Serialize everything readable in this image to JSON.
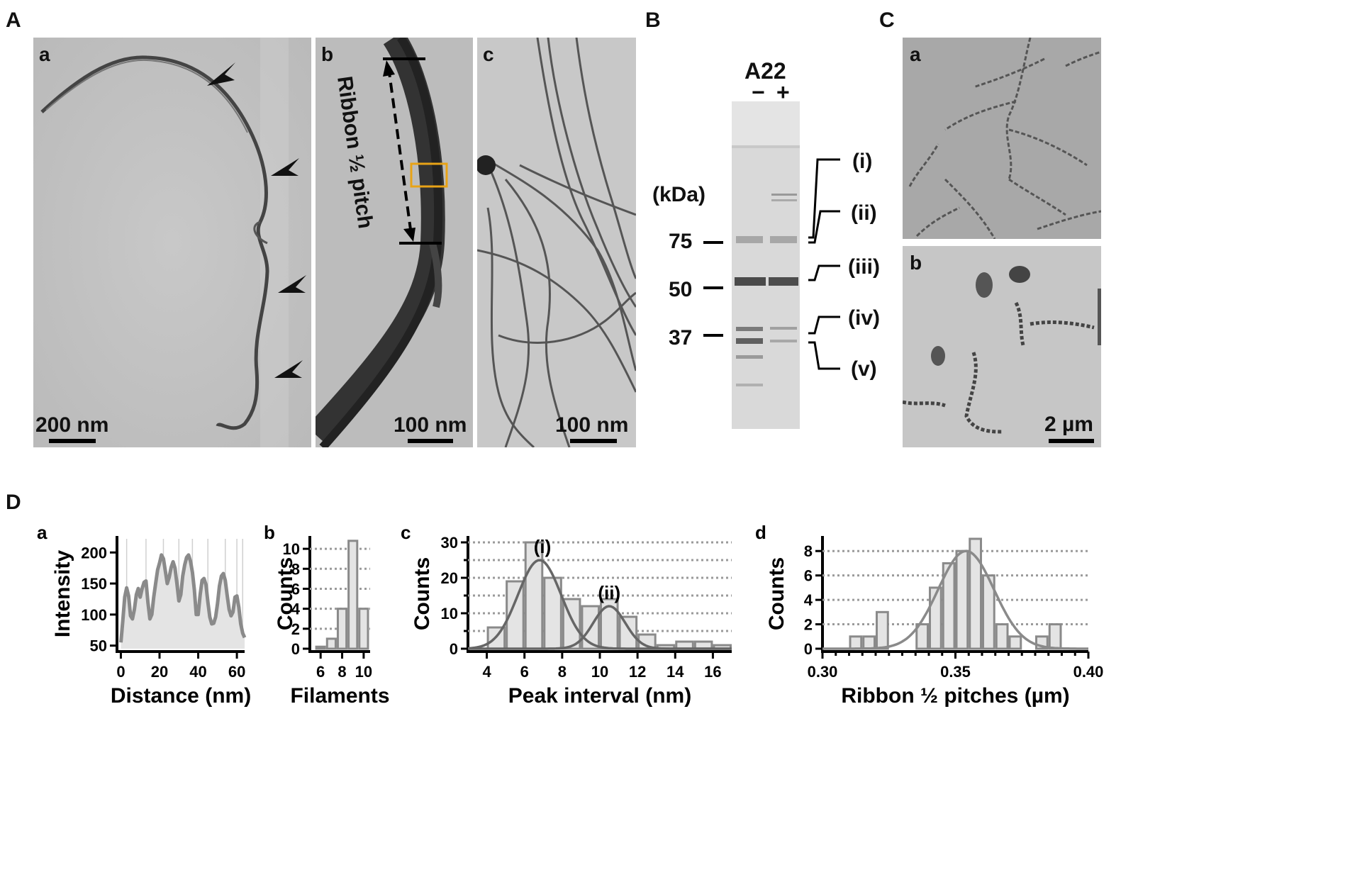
{
  "panels": {
    "A": {
      "label": "A",
      "a": {
        "label": "a",
        "scale": "200 nm"
      },
      "b": {
        "label": "b",
        "scale": "100 nm",
        "annotation": "Ribbon ½ pitch"
      },
      "c": {
        "label": "c",
        "scale": "100 nm"
      }
    },
    "B": {
      "label": "B",
      "title": "A22",
      "lane_minus": "−",
      "lane_plus": "+",
      "unit": "(kDa)",
      "markers": [
        "75",
        "50",
        "37"
      ],
      "bands": [
        "(i)",
        "(ii)",
        "(iii)",
        "(iv)",
        "(v)"
      ]
    },
    "C": {
      "label": "C",
      "a": {
        "label": "a"
      },
      "b": {
        "label": "b",
        "scale": "2 µm"
      }
    },
    "D": {
      "label": "D"
    }
  },
  "chart_data": [
    {
      "id": "Da",
      "panel_label": "a",
      "type": "area",
      "xlabel": "Distance (nm)",
      "ylabel": "Intensity",
      "xlim": [
        -2,
        64
      ],
      "ylim": [
        45,
        222
      ],
      "xticks": [
        0,
        20,
        40,
        60
      ],
      "yticks": [
        50,
        100,
        150,
        200
      ],
      "vlines": [
        3,
        13,
        22,
        30,
        37,
        45,
        54,
        60,
        63
      ],
      "x": [
        0,
        1,
        2,
        3,
        4,
        5,
        6,
        7,
        8,
        9,
        10,
        11,
        12,
        13,
        14,
        15,
        16,
        17,
        18,
        19,
        20,
        21,
        22,
        23,
        24,
        25,
        26,
        27,
        28,
        29,
        30,
        31,
        32,
        33,
        34,
        35,
        36,
        37,
        38,
        39,
        40,
        41,
        42,
        43,
        44,
        45,
        46,
        47,
        48,
        49,
        50,
        51,
        52,
        53,
        54,
        55,
        56,
        57,
        58,
        59,
        60,
        61,
        62,
        63,
        64
      ],
      "values": [
        55,
        90,
        128,
        143,
        130,
        98,
        93,
        108,
        132,
        142,
        128,
        142,
        152,
        154,
        120,
        93,
        100,
        128,
        150,
        172,
        183,
        196,
        190,
        170,
        150,
        160,
        176,
        185,
        175,
        150,
        122,
        132,
        162,
        180,
        192,
        196,
        186,
        168,
        140,
        100,
        100,
        132,
        155,
        158,
        148,
        120,
        96,
        85,
        86,
        96,
        118,
        146,
        162,
        166,
        155,
        130,
        108,
        98,
        104,
        128,
        130,
        112,
        85,
        70,
        63
      ]
    },
    {
      "id": "Db",
      "panel_label": "b",
      "type": "bar",
      "xlabel": "Filaments",
      "ylabel": "Counts",
      "xlim": [
        5,
        10.6
      ],
      "ylim": [
        0,
        11
      ],
      "xtick_labels": [
        "6",
        "8",
        "10"
      ],
      "yticks": [
        0,
        2,
        4,
        6,
        8,
        10
      ],
      "categories": [
        "6",
        "7",
        "8",
        "9",
        "10"
      ],
      "values": [
        0.2,
        1,
        4,
        10.8,
        4
      ]
    },
    {
      "id": "Dc",
      "panel_label": "c",
      "type": "bar",
      "xlabel": "Peak interval (nm)",
      "ylabel": "Counts",
      "xlim": [
        3,
        17
      ],
      "ylim": [
        0,
        31
      ],
      "xticks": [
        4,
        6,
        8,
        10,
        12,
        14,
        16
      ],
      "yticks": [
        0,
        10,
        20,
        30
      ],
      "bin_width": 1,
      "bin_centers": [
        4.5,
        5.5,
        6.5,
        7.5,
        8.5,
        9.5,
        10.5,
        11.5,
        12.5,
        13.5,
        14.5,
        15.5,
        16.5
      ],
      "values": [
        6,
        19,
        30,
        20,
        14,
        12,
        14,
        9,
        4,
        1,
        2,
        2,
        1
      ],
      "fits": [
        {
          "name": "(i)",
          "mean": 6.8,
          "sd": 1.15,
          "amp": 25
        },
        {
          "name": "(ii)",
          "mean": 10.5,
          "sd": 0.85,
          "amp": 12
        }
      ]
    },
    {
      "id": "Dd",
      "panel_label": "d",
      "type": "bar",
      "xlabel": "Ribbon ½ pitches (µm)",
      "ylabel": "Counts",
      "xlim": [
        0.3,
        0.4
      ],
      "ylim": [
        0,
        9
      ],
      "xticks": [
        "0.30",
        "0.35",
        "0.40"
      ],
      "yticks": [
        0,
        2,
        4,
        6,
        8
      ],
      "bin_width": 0.005,
      "bin_centers": [
        0.3025,
        0.3075,
        0.3125,
        0.3175,
        0.3225,
        0.3275,
        0.3325,
        0.3375,
        0.3425,
        0.3475,
        0.3525,
        0.3575,
        0.3625,
        0.3675,
        0.3725,
        0.3775,
        0.3825,
        0.3875,
        0.3925,
        0.3975
      ],
      "values": [
        0,
        0,
        1,
        1,
        3,
        0,
        0,
        2,
        5,
        7,
        8,
        9,
        6,
        2,
        1,
        0,
        1,
        2,
        0,
        0
      ],
      "fits": [
        {
          "name": "",
          "mean": 0.354,
          "sd": 0.0105,
          "amp": 8
        }
      ]
    }
  ]
}
